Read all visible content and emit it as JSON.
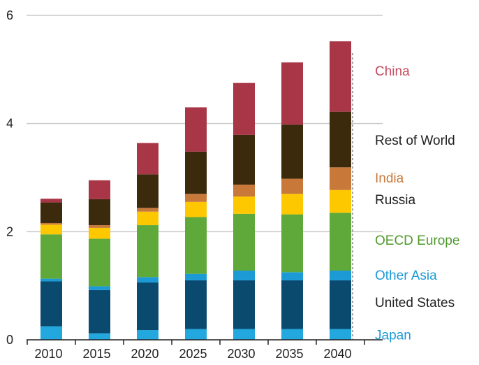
{
  "chart_data": {
    "type": "bar",
    "stacked": true,
    "categories": [
      "2010",
      "2015",
      "2020",
      "2025",
      "2030",
      "2035",
      "2040"
    ],
    "ylim": [
      0,
      6
    ],
    "yticks": [
      "0",
      "2",
      "4",
      "6"
    ],
    "grid": true,
    "legend": "right, inline labels beside last bar",
    "series": [
      {
        "name": "Japan",
        "color": "#22a8de",
        "values": [
          0.25,
          0.12,
          0.18,
          0.2,
          0.2,
          0.2,
          0.2
        ]
      },
      {
        "name": "United States",
        "color": "#0a4a6e",
        "values": [
          0.83,
          0.8,
          0.88,
          0.9,
          0.9,
          0.9,
          0.9
        ]
      },
      {
        "name": "Other Asia",
        "color": "#1c9ad6",
        "values": [
          0.05,
          0.07,
          0.1,
          0.12,
          0.18,
          0.15,
          0.18
        ]
      },
      {
        "name": "OECD Europe",
        "color": "#5fa83a",
        "values": [
          0.82,
          0.88,
          0.96,
          1.05,
          1.05,
          1.07,
          1.07
        ]
      },
      {
        "name": "Russia",
        "color": "#fdc800",
        "values": [
          0.18,
          0.2,
          0.25,
          0.28,
          0.32,
          0.38,
          0.42
        ]
      },
      {
        "name": "India",
        "color": "#c8793a",
        "values": [
          0.03,
          0.05,
          0.07,
          0.15,
          0.22,
          0.28,
          0.42
        ]
      },
      {
        "name": "Rest of World",
        "color": "#3b2a0c",
        "values": [
          0.38,
          0.48,
          0.62,
          0.78,
          0.92,
          1.0,
          1.03
        ]
      },
      {
        "name": "China",
        "color": "#a83647",
        "values": [
          0.07,
          0.35,
          0.58,
          0.82,
          0.96,
          1.15,
          1.3
        ]
      }
    ]
  },
  "legend_labels": [
    {
      "text": "China",
      "color": "#c44b5f",
      "value": 4.98
    },
    {
      "text": "Rest of World",
      "color": "#222222",
      "value": 3.7
    },
    {
      "text": "India",
      "color": "#c8793a",
      "value": 3.0
    },
    {
      "text": "Russia",
      "color": "#222222",
      "value": 2.6
    },
    {
      "text": "OECD Europe",
      "color": "#4f9a2c",
      "value": 1.85
    },
    {
      "text": "Other Asia",
      "color": "#1c9ad6",
      "value": 1.2
    },
    {
      "text": "United States",
      "color": "#222222",
      "value": 0.7
    },
    {
      "text": "Japan",
      "color": "#1c9ad6",
      "value": 0.1
    }
  ]
}
